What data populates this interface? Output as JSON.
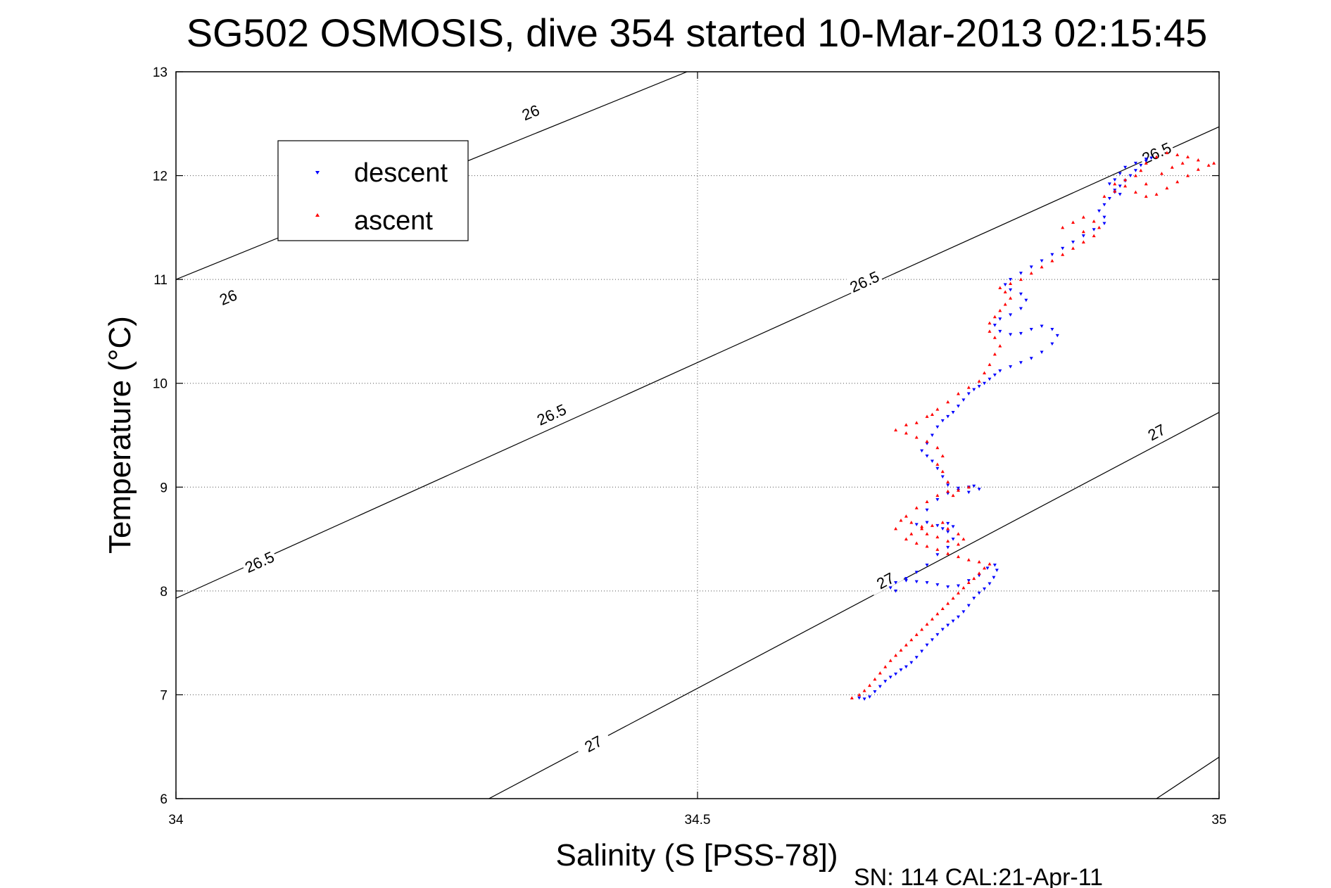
{
  "chart_data": {
    "type": "scatter",
    "title": "SG502 OSMOSIS, dive 354 started 10-Mar-2013 02:15:45",
    "xlabel": "Salinity (S [PSS-78])",
    "ylabel": "Temperature (°C)",
    "footer": "SN: 114  CAL:21-Apr-11",
    "xlim": [
      34,
      35
    ],
    "ylim": [
      6,
      13
    ],
    "xticks": [
      34,
      34.5,
      35
    ],
    "xtick_labels": [
      "34",
      "34.5",
      "35"
    ],
    "yticks": [
      6,
      7,
      8,
      9,
      10,
      11,
      12,
      13
    ],
    "ytick_labels": [
      "6",
      "7",
      "8",
      "9",
      "10",
      "11",
      "12",
      "13"
    ],
    "grid": true,
    "legend_position": "top-left",
    "contours": [
      {
        "label": "26",
        "points": [
          [
            34.0,
            11.0
          ],
          [
            34.49,
            13.0
          ]
        ],
        "label_positions": [
          [
            34.05,
            10.83
          ],
          [
            34.34,
            12.61
          ]
        ]
      },
      {
        "label": "26.5",
        "points": [
          [
            34.0,
            7.93
          ],
          [
            35.0,
            12.47
          ]
        ],
        "label_positions": [
          [
            34.08,
            8.28
          ],
          [
            34.36,
            9.7
          ],
          [
            34.66,
            10.98
          ],
          [
            34.94,
            12.22
          ]
        ]
      },
      {
        "label": "27",
        "points": [
          [
            34.3,
            6.0
          ],
          [
            35.0,
            9.72
          ]
        ],
        "label_positions": [
          [
            34.4,
            6.53
          ],
          [
            34.68,
            8.1
          ],
          [
            34.94,
            9.53
          ]
        ]
      },
      {
        "label": "",
        "points": [
          [
            34.94,
            6.0
          ],
          [
            35.0,
            6.4
          ]
        ],
        "label_positions": []
      }
    ],
    "series": [
      {
        "name": "descent",
        "color": "#0000ff",
        "marker": "triangle-down",
        "points": [
          [
            34.655,
            6.97
          ],
          [
            34.66,
            6.96
          ],
          [
            34.665,
            6.98
          ],
          [
            34.67,
            7.03
          ],
          [
            34.675,
            7.08
          ],
          [
            34.68,
            7.13
          ],
          [
            34.685,
            7.17
          ],
          [
            34.69,
            7.2
          ],
          [
            34.695,
            7.24
          ],
          [
            34.7,
            7.27
          ],
          [
            34.705,
            7.31
          ],
          [
            34.71,
            7.36
          ],
          [
            34.715,
            7.42
          ],
          [
            34.72,
            7.48
          ],
          [
            34.725,
            7.53
          ],
          [
            34.73,
            7.58
          ],
          [
            34.735,
            7.63
          ],
          [
            34.74,
            7.67
          ],
          [
            34.745,
            7.71
          ],
          [
            34.75,
            7.75
          ],
          [
            34.755,
            7.8
          ],
          [
            34.76,
            7.86
          ],
          [
            34.765,
            7.93
          ],
          [
            34.77,
            7.98
          ],
          [
            34.775,
            8.02
          ],
          [
            34.78,
            8.07
          ],
          [
            34.784,
            8.13
          ],
          [
            34.787,
            8.2
          ],
          [
            34.785,
            8.25
          ],
          [
            34.778,
            8.22
          ],
          [
            34.77,
            8.15
          ],
          [
            34.76,
            8.1
          ],
          [
            34.75,
            8.05
          ],
          [
            34.74,
            8.04
          ],
          [
            34.73,
            8.06
          ],
          [
            34.72,
            8.08
          ],
          [
            34.71,
            8.09
          ],
          [
            34.7,
            8.1
          ],
          [
            34.69,
            8.08
          ],
          [
            34.685,
            8.03
          ],
          [
            34.69,
            8.0
          ],
          [
            34.7,
            8.12
          ],
          [
            34.71,
            8.18
          ],
          [
            34.72,
            8.25
          ],
          [
            34.73,
            8.35
          ],
          [
            34.74,
            8.42
          ],
          [
            34.745,
            8.5
          ],
          [
            34.74,
            8.57
          ],
          [
            34.735,
            8.6
          ],
          [
            34.74,
            8.65
          ],
          [
            34.745,
            8.62
          ],
          [
            34.73,
            8.63
          ],
          [
            34.72,
            8.66
          ],
          [
            34.71,
            8.64
          ],
          [
            34.72,
            8.78
          ],
          [
            34.73,
            8.88
          ],
          [
            34.74,
            8.94
          ],
          [
            34.75,
            8.99
          ],
          [
            34.76,
            9.0
          ],
          [
            34.765,
            9.01
          ],
          [
            34.77,
            8.98
          ],
          [
            34.76,
            8.95
          ],
          [
            34.75,
            8.97
          ],
          [
            34.74,
            9.02
          ],
          [
            34.735,
            9.1
          ],
          [
            34.73,
            9.18
          ],
          [
            34.725,
            9.25
          ],
          [
            34.72,
            9.3
          ],
          [
            34.715,
            9.35
          ],
          [
            34.72,
            9.42
          ],
          [
            34.725,
            9.5
          ],
          [
            34.73,
            9.58
          ],
          [
            34.735,
            9.64
          ],
          [
            34.74,
            9.68
          ],
          [
            34.745,
            9.72
          ],
          [
            34.75,
            9.78
          ],
          [
            34.755,
            9.84
          ],
          [
            34.76,
            9.9
          ],
          [
            34.765,
            9.94
          ],
          [
            34.77,
            9.97
          ],
          [
            34.775,
            10.0
          ],
          [
            34.78,
            10.04
          ],
          [
            34.785,
            10.08
          ],
          [
            34.79,
            10.12
          ],
          [
            34.8,
            10.16
          ],
          [
            34.81,
            10.2
          ],
          [
            34.82,
            10.24
          ],
          [
            34.83,
            10.3
          ],
          [
            34.84,
            10.38
          ],
          [
            34.845,
            10.46
          ],
          [
            34.84,
            10.52
          ],
          [
            34.83,
            10.55
          ],
          [
            34.82,
            10.52
          ],
          [
            34.81,
            10.48
          ],
          [
            34.8,
            10.47
          ],
          [
            34.79,
            10.5
          ],
          [
            34.785,
            10.56
          ],
          [
            34.79,
            10.62
          ],
          [
            34.8,
            10.66
          ],
          [
            34.81,
            10.72
          ],
          [
            34.815,
            10.8
          ],
          [
            34.81,
            10.86
          ],
          [
            34.8,
            10.9
          ],
          [
            34.795,
            10.95
          ],
          [
            34.8,
            11.0
          ],
          [
            34.81,
            11.06
          ],
          [
            34.82,
            11.12
          ],
          [
            34.83,
            11.18
          ],
          [
            34.84,
            11.24
          ],
          [
            34.85,
            11.3
          ],
          [
            34.86,
            11.36
          ],
          [
            34.87,
            11.42
          ],
          [
            34.88,
            11.48
          ],
          [
            34.89,
            11.54
          ],
          [
            34.89,
            11.6
          ],
          [
            34.885,
            11.66
          ],
          [
            34.89,
            11.72
          ],
          [
            34.895,
            11.78
          ],
          [
            34.9,
            11.84
          ],
          [
            34.905,
            11.9
          ],
          [
            34.91,
            11.95
          ],
          [
            34.915,
            12.0
          ],
          [
            34.92,
            12.05
          ],
          [
            34.925,
            12.1
          ],
          [
            34.93,
            12.14
          ],
          [
            34.935,
            12.17
          ],
          [
            34.93,
            12.16
          ],
          [
            34.92,
            12.12
          ],
          [
            34.91,
            12.08
          ],
          [
            34.905,
            12.02
          ],
          [
            34.9,
            11.96
          ],
          [
            34.895,
            11.92
          ],
          [
            34.9,
            11.86
          ],
          [
            34.905,
            11.82
          ]
        ]
      },
      {
        "name": "ascent",
        "color": "#ff0000",
        "marker": "triangle-up",
        "points": [
          [
            34.648,
            6.97
          ],
          [
            34.655,
            7.0
          ],
          [
            34.66,
            7.04
          ],
          [
            34.665,
            7.09
          ],
          [
            34.67,
            7.15
          ],
          [
            34.675,
            7.21
          ],
          [
            34.68,
            7.27
          ],
          [
            34.685,
            7.33
          ],
          [
            34.69,
            7.38
          ],
          [
            34.695,
            7.43
          ],
          [
            34.7,
            7.48
          ],
          [
            34.705,
            7.53
          ],
          [
            34.71,
            7.58
          ],
          [
            34.715,
            7.63
          ],
          [
            34.72,
            7.68
          ],
          [
            34.725,
            7.73
          ],
          [
            34.73,
            7.78
          ],
          [
            34.735,
            7.83
          ],
          [
            34.74,
            7.88
          ],
          [
            34.745,
            7.93
          ],
          [
            34.75,
            7.98
          ],
          [
            34.755,
            8.03
          ],
          [
            34.76,
            8.08
          ],
          [
            34.765,
            8.12
          ],
          [
            34.77,
            8.17
          ],
          [
            34.775,
            8.22
          ],
          [
            34.78,
            8.26
          ],
          [
            34.77,
            8.28
          ],
          [
            34.76,
            8.3
          ],
          [
            34.75,
            8.33
          ],
          [
            34.74,
            8.36
          ],
          [
            34.73,
            8.4
          ],
          [
            34.72,
            8.43
          ],
          [
            34.71,
            8.46
          ],
          [
            34.7,
            8.5
          ],
          [
            34.705,
            8.55
          ],
          [
            34.715,
            8.6
          ],
          [
            34.725,
            8.63
          ],
          [
            34.735,
            8.66
          ],
          [
            34.74,
            8.6
          ],
          [
            34.75,
            8.55
          ],
          [
            34.755,
            8.5
          ],
          [
            34.75,
            8.45
          ],
          [
            34.74,
            8.48
          ],
          [
            34.73,
            8.52
          ],
          [
            34.72,
            8.55
          ],
          [
            34.715,
            8.62
          ],
          [
            34.705,
            8.66
          ],
          [
            34.695,
            8.68
          ],
          [
            34.69,
            8.6
          ],
          [
            34.7,
            8.72
          ],
          [
            34.71,
            8.8
          ],
          [
            34.72,
            8.86
          ],
          [
            34.73,
            8.92
          ],
          [
            34.74,
            8.96
          ],
          [
            34.75,
            8.97
          ],
          [
            34.76,
            9.0
          ],
          [
            34.745,
            8.92
          ],
          [
            34.74,
            9.05
          ],
          [
            34.735,
            9.15
          ],
          [
            34.73,
            9.22
          ],
          [
            34.735,
            9.3
          ],
          [
            34.73,
            9.38
          ],
          [
            34.72,
            9.44
          ],
          [
            34.71,
            9.48
          ],
          [
            34.7,
            9.52
          ],
          [
            34.69,
            9.55
          ],
          [
            34.7,
            9.6
          ],
          [
            34.71,
            9.62
          ],
          [
            34.72,
            9.68
          ],
          [
            34.725,
            9.7
          ],
          [
            34.73,
            9.75
          ],
          [
            34.74,
            9.82
          ],
          [
            34.75,
            9.9
          ],
          [
            34.76,
            9.96
          ],
          [
            34.77,
            10.02
          ],
          [
            34.775,
            10.1
          ],
          [
            34.78,
            10.18
          ],
          [
            34.785,
            10.28
          ],
          [
            34.79,
            10.36
          ],
          [
            34.785,
            10.44
          ],
          [
            34.78,
            10.5
          ],
          [
            34.78,
            10.58
          ],
          [
            34.785,
            10.64
          ],
          [
            34.79,
            10.7
          ],
          [
            34.795,
            10.76
          ],
          [
            34.8,
            10.82
          ],
          [
            34.795,
            10.88
          ],
          [
            34.79,
            10.92
          ],
          [
            34.8,
            10.96
          ],
          [
            34.81,
            11.0
          ],
          [
            34.82,
            11.06
          ],
          [
            34.83,
            11.12
          ],
          [
            34.84,
            11.18
          ],
          [
            34.85,
            11.24
          ],
          [
            34.86,
            11.3
          ],
          [
            34.87,
            11.36
          ],
          [
            34.88,
            11.42
          ],
          [
            34.885,
            11.5
          ],
          [
            34.88,
            11.56
          ],
          [
            34.87,
            11.6
          ],
          [
            34.86,
            11.55
          ],
          [
            34.85,
            11.5
          ],
          [
            34.87,
            11.46
          ],
          [
            34.89,
            11.8
          ],
          [
            34.9,
            11.85
          ],
          [
            34.91,
            11.9
          ],
          [
            34.92,
            11.84
          ],
          [
            34.93,
            11.8
          ],
          [
            34.94,
            11.82
          ],
          [
            34.95,
            11.88
          ],
          [
            34.96,
            11.94
          ],
          [
            34.97,
            12.0
          ],
          [
            34.98,
            12.06
          ],
          [
            34.99,
            12.1
          ],
          [
            34.995,
            12.12
          ],
          [
            34.98,
            12.15
          ],
          [
            34.97,
            12.18
          ],
          [
            34.96,
            12.2
          ],
          [
            34.95,
            12.22
          ],
          [
            34.94,
            12.18
          ],
          [
            34.93,
            12.12
          ],
          [
            34.925,
            12.05
          ],
          [
            34.92,
            12.0
          ],
          [
            34.91,
            11.96
          ],
          [
            34.9,
            11.92
          ],
          [
            34.93,
            11.92
          ],
          [
            34.945,
            12.02
          ],
          [
            34.955,
            12.08
          ],
          [
            34.965,
            12.12
          ]
        ]
      }
    ]
  }
}
